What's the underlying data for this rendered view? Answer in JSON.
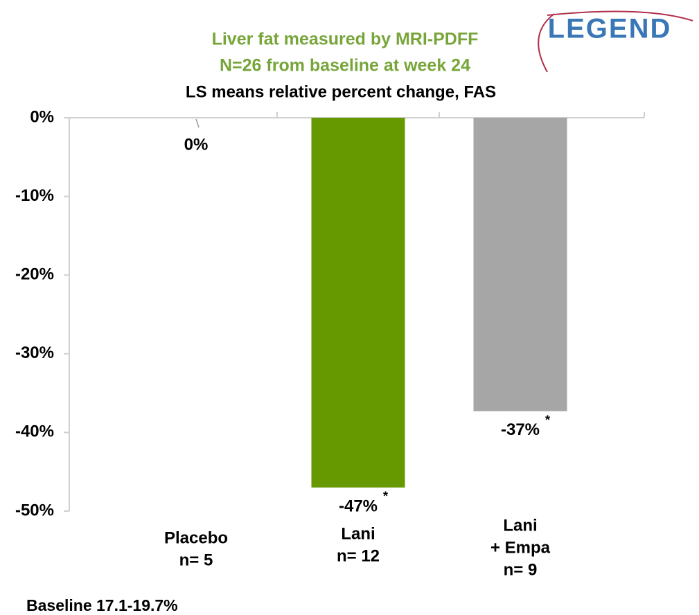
{
  "chart_data": {
    "type": "bar",
    "title": [
      "Liver fat measured by MRI-PDFF",
      "N=26 from baseline at week 24"
    ],
    "subtitle": "LS means relative percent change, FAS",
    "logo": "LEGEND",
    "categories": [
      [
        "Placebo",
        "n= 5"
      ],
      [
        "Lani",
        "n= 12"
      ],
      [
        "Lani",
        "+ Empa",
        "n= 9"
      ]
    ],
    "values": [
      0,
      -47,
      -37.3
    ],
    "value_labels": [
      "0%",
      "-47%",
      "-37%"
    ],
    "significance_marks": [
      null,
      "*",
      "*"
    ],
    "colors": [
      "#a6a6a6",
      "#669900",
      "#a6a6a6"
    ],
    "ylim": [
      -50,
      0
    ],
    "yticks": [
      {
        "value": 0,
        "label": "0%"
      },
      {
        "value": -10,
        "label": "-10%"
      },
      {
        "value": -20,
        "label": "-20%"
      },
      {
        "value": -30,
        "label": "-30%"
      },
      {
        "value": -40,
        "label": "-40%"
      },
      {
        "value": -50,
        "label": "-50%"
      }
    ],
    "footnote": "Baseline 17.1-19.7%"
  }
}
